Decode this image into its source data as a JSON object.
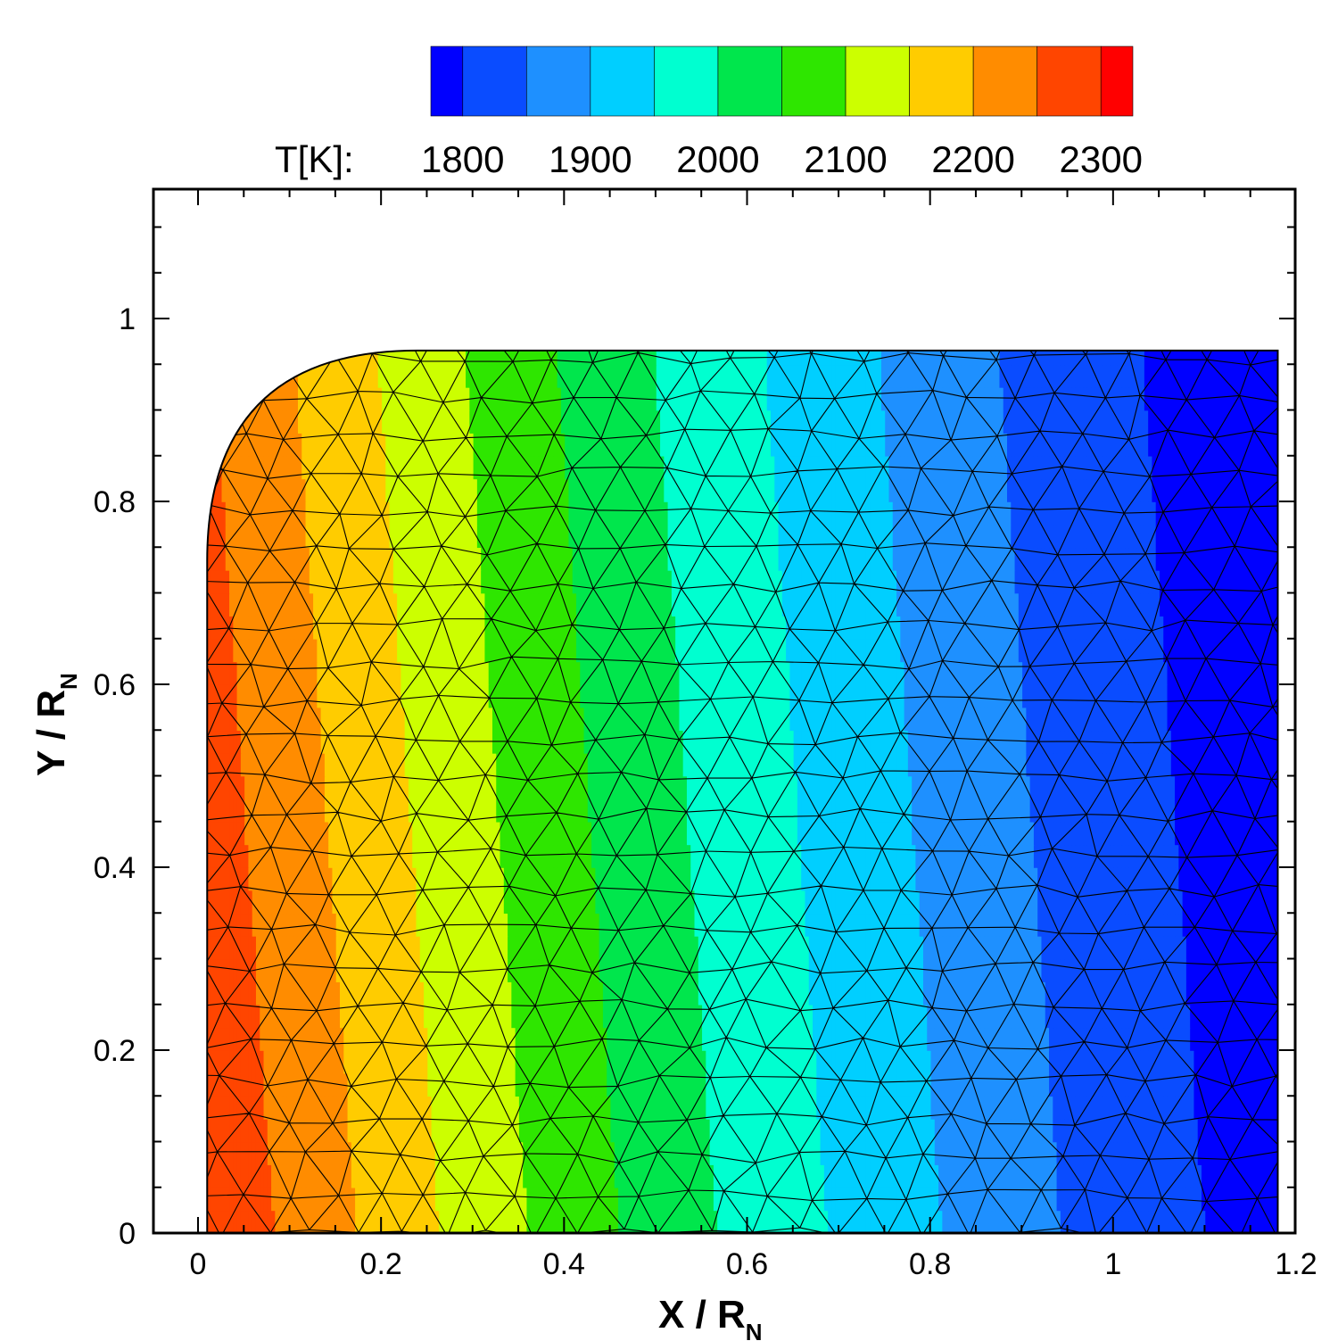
{
  "chart_data": {
    "type": "heatmap",
    "title": "",
    "field_variable": "T[K]",
    "colorbar": {
      "label": "T[K]:",
      "tick_labels": [
        "1800",
        "1900",
        "2000",
        "2100",
        "2200",
        "2300"
      ],
      "ticks": [
        1800,
        1900,
        2000,
        2100,
        2200,
        2300
      ],
      "levels": [
        1775,
        1800,
        1850,
        1900,
        1950,
        2000,
        2050,
        2100,
        2150,
        2200,
        2250,
        2300,
        2325
      ],
      "colors": [
        "#0000ff",
        "#0a4cff",
        "#1e90ff",
        "#00cfff",
        "#00ffd0",
        "#00e64c",
        "#2ee600",
        "#ccff00",
        "#ffcc00",
        "#ff8c00",
        "#ff4500",
        "#ff0000"
      ],
      "position": "top"
    },
    "xlabel": {
      "main": "X / R",
      "sub": "N"
    },
    "ylabel": {
      "main": "Y / R",
      "sub": "N"
    },
    "xlim": [
      -0.1,
      1.2
    ],
    "ylim": [
      0,
      1.13
    ],
    "x_ticks": [
      0,
      0.2,
      0.4,
      0.6,
      0.8,
      1,
      1.2
    ],
    "x_tick_labels": [
      "0",
      "0.2",
      "0.4",
      "0.6",
      "0.8",
      "1",
      "1.2"
    ],
    "y_ticks": [
      0,
      0.2,
      0.4,
      0.6,
      0.8,
      1
    ],
    "y_tick_labels": [
      "0",
      "0.2",
      "0.4",
      "0.6",
      "0.8",
      "1"
    ],
    "domain": {
      "x_min": 0.01,
      "x_max": 1.18,
      "y_max": 0.965,
      "corner_radius": 0.23
    },
    "temperature_profile": {
      "x": [
        0.0,
        0.1,
        0.2,
        0.3,
        0.4,
        0.5,
        0.6,
        0.7,
        0.8,
        0.9,
        1.0,
        1.1,
        1.18
      ],
      "T": [
        2300,
        2240,
        2185,
        2130,
        2080,
        2030,
        1985,
        1945,
        1905,
        1865,
        1830,
        1800,
        1785
      ]
    },
    "isoline_tilt_dx_per_dy": 0.07,
    "mesh": "unstructured triangular",
    "grid": false,
    "legend": "colorbar top-center"
  }
}
